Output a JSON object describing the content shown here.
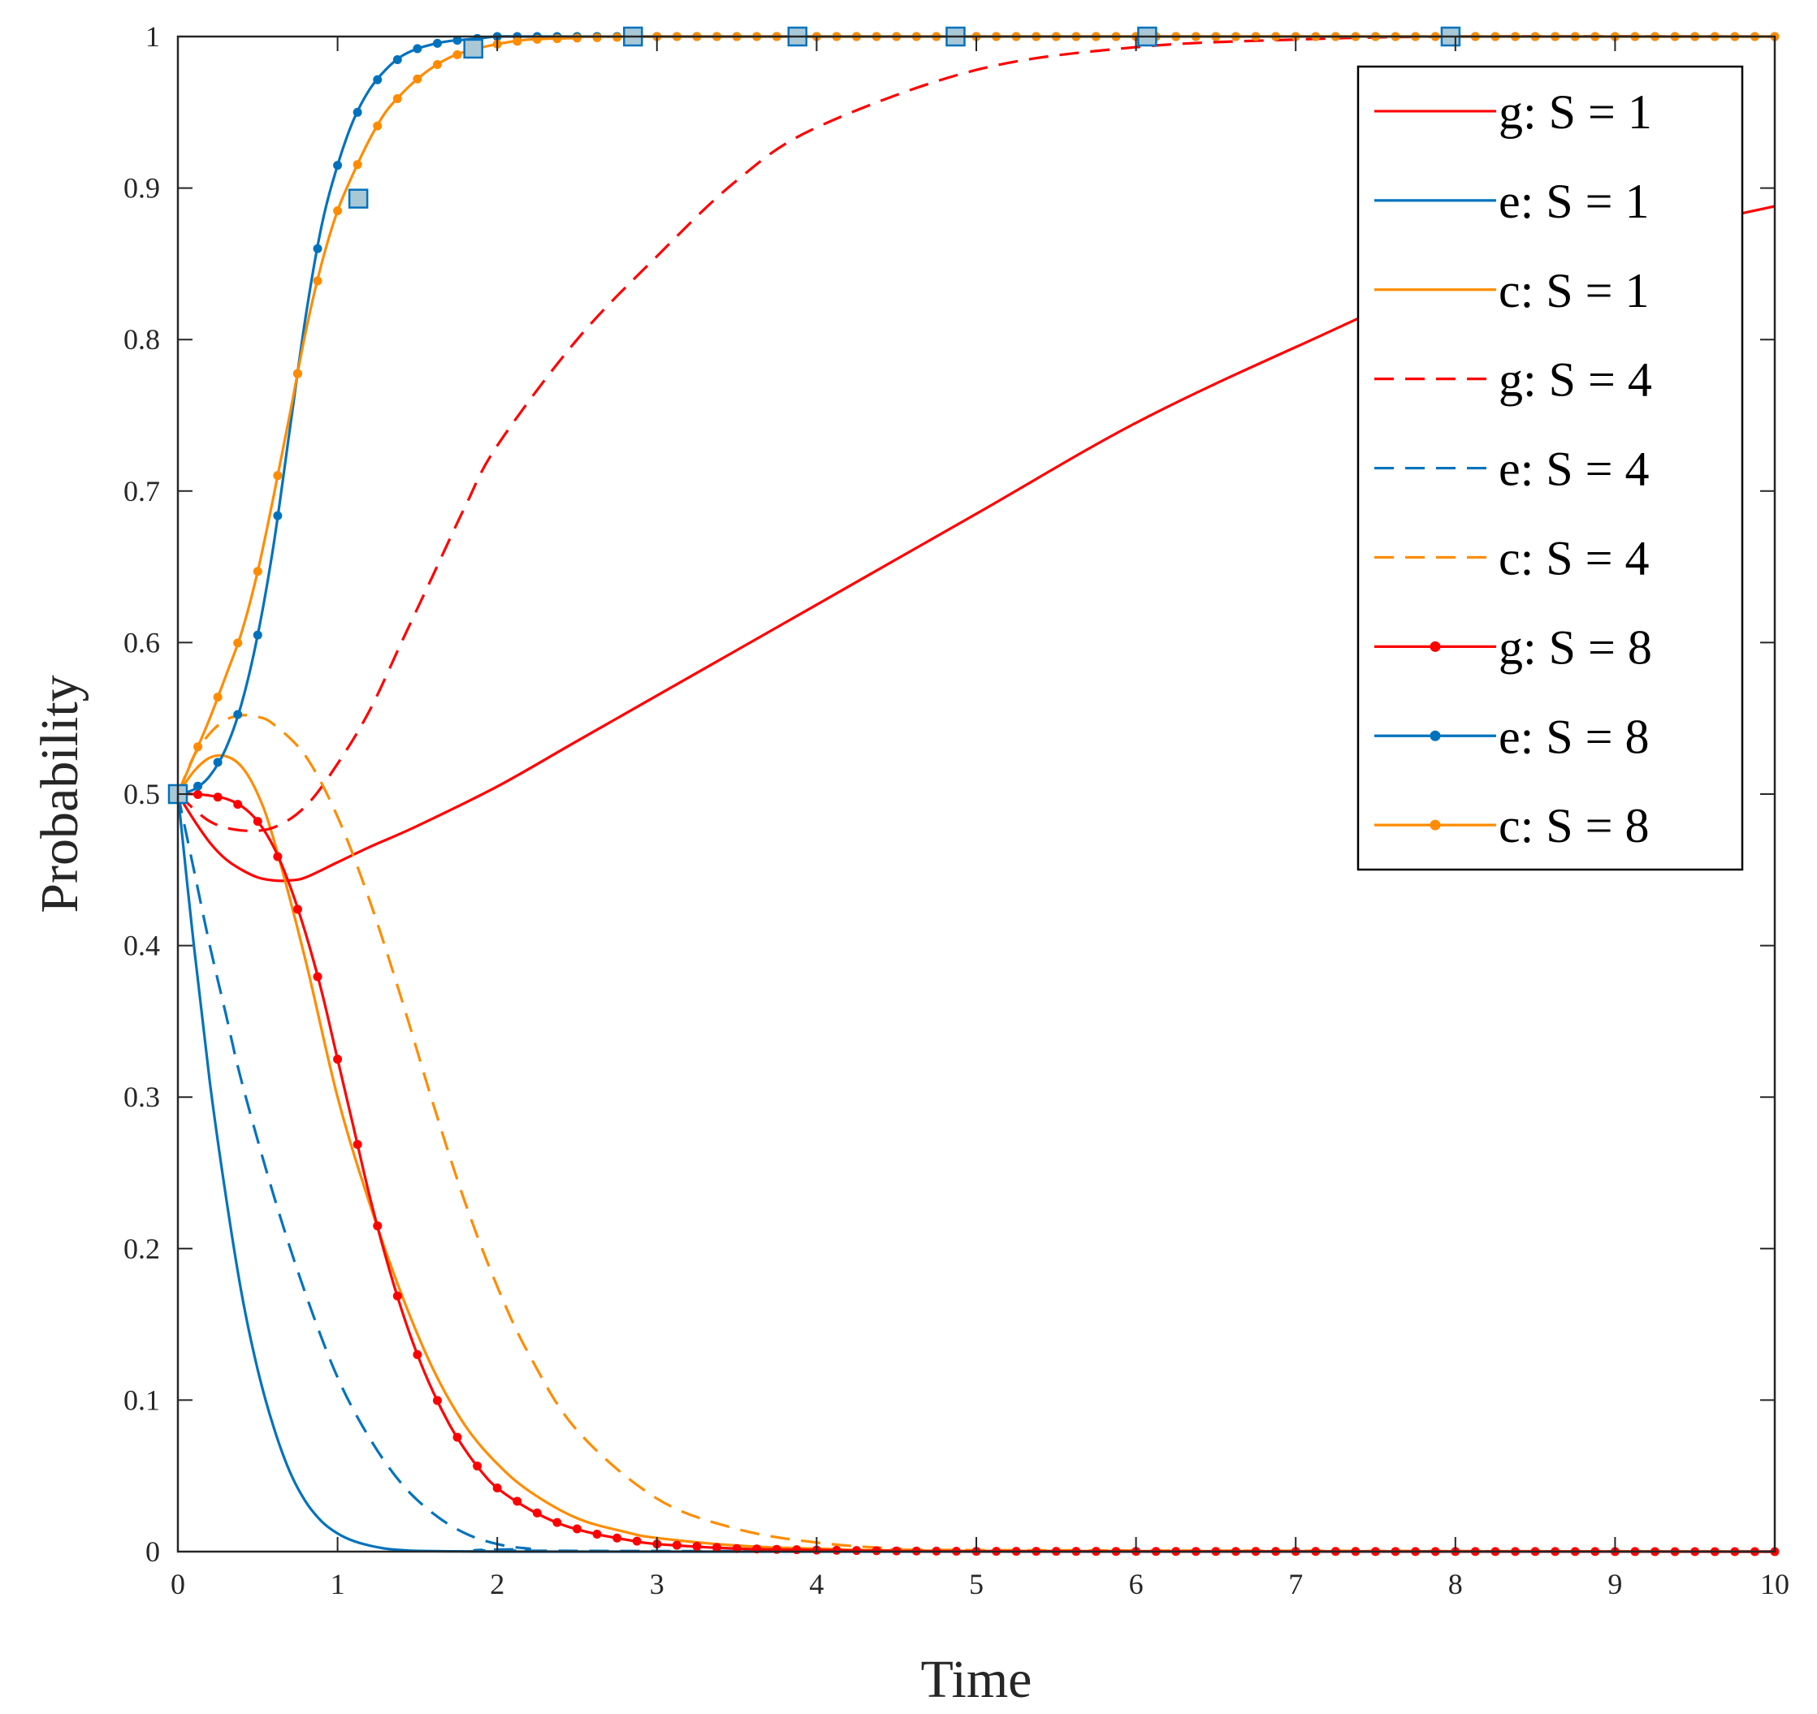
{
  "chart_data": {
    "type": "line",
    "title": "",
    "xlabel": "Time",
    "ylabel": "Probability",
    "xlim": [
      0,
      10
    ],
    "ylim": [
      0,
      1
    ],
    "xticks": [
      0,
      1,
      2,
      3,
      4,
      5,
      6,
      7,
      8,
      9,
      10
    ],
    "xtick_labels": [
      "0",
      "1",
      "2",
      "3",
      "4",
      "5",
      "6",
      "7",
      "8",
      "9",
      "10"
    ],
    "yticks": [
      0,
      0.1,
      0.2,
      0.3,
      0.4,
      0.5,
      0.6,
      0.7,
      0.8,
      0.9,
      1
    ],
    "ytick_labels": [
      "0",
      "0.1",
      "0.2",
      "0.3",
      "0.4",
      "0.5",
      "0.6",
      "0.7",
      "0.8",
      "0.9",
      "1"
    ],
    "grid": false,
    "legend_position": "top-right",
    "colors": {
      "g": "#ff0000",
      "e": "#0072bd",
      "c": "#ff8c00",
      "square_fill": "#a9c8d6"
    },
    "series": [
      {
        "name": "g: S = 1",
        "color": "#ff0000",
        "style": "solid",
        "marker": "none",
        "x": [
          0,
          0.1,
          0.2,
          0.3,
          0.4,
          0.5,
          0.6,
          0.7,
          0.8,
          1,
          1.2,
          1.5,
          2,
          2.5,
          3,
          4,
          5,
          6,
          7,
          8,
          9,
          10
        ],
        "y": [
          0.5,
          0.483,
          0.468,
          0.457,
          0.45,
          0.445,
          0.443,
          0.443,
          0.445,
          0.455,
          0.465,
          0.479,
          0.505,
          0.535,
          0.565,
          0.625,
          0.685,
          0.745,
          0.795,
          0.84,
          0.865,
          0.888
        ]
      },
      {
        "name": "e: S = 1",
        "color": "#0072bd",
        "style": "solid",
        "marker": "none",
        "x": [
          0,
          0.1,
          0.2,
          0.3,
          0.4,
          0.5,
          0.6,
          0.7,
          0.8,
          0.9,
          1,
          1.1,
          1.2,
          1.3,
          1.4,
          1.5,
          1.7,
          2,
          2.5,
          10
        ],
        "y": [
          0.5,
          0.4,
          0.31,
          0.235,
          0.17,
          0.12,
          0.082,
          0.053,
          0.033,
          0.02,
          0.012,
          0.007,
          0.004,
          0.002,
          0.001,
          0.0005,
          0.0002,
          0.0001,
          0,
          0
        ]
      },
      {
        "name": "c: S = 1",
        "color": "#ff8c00",
        "style": "solid",
        "marker": "none",
        "x": [
          0,
          0.1,
          0.2,
          0.3,
          0.4,
          0.5,
          0.6,
          0.8,
          1,
          1.2,
          1.4,
          1.6,
          1.8,
          2,
          2.2,
          2.5,
          2.8,
          3,
          3.5,
          4,
          5,
          10
        ],
        "y": [
          0.5,
          0.515,
          0.524,
          0.525,
          0.518,
          0.5,
          0.47,
          0.39,
          0.3,
          0.23,
          0.17,
          0.12,
          0.083,
          0.058,
          0.04,
          0.022,
          0.013,
          0.009,
          0.004,
          0.002,
          0.0005,
          0
        ]
      },
      {
        "name": "g: S = 4",
        "color": "#ff0000",
        "style": "dashed",
        "marker": "none",
        "x": [
          0,
          0.2,
          0.4,
          0.6,
          0.8,
          1,
          1.2,
          1.4,
          1.6,
          1.8,
          2,
          2.5,
          3,
          3.5,
          4,
          5,
          6,
          7,
          8,
          10
        ],
        "y": [
          0.5,
          0.482,
          0.476,
          0.478,
          0.492,
          0.52,
          0.555,
          0.6,
          0.645,
          0.69,
          0.73,
          0.8,
          0.855,
          0.905,
          0.94,
          0.978,
          0.993,
          0.998,
          1,
          1
        ]
      },
      {
        "name": "e: S = 4",
        "color": "#0072bd",
        "style": "dashed",
        "marker": "none",
        "x": [
          0,
          0.1,
          0.2,
          0.3,
          0.4,
          0.6,
          0.8,
          1,
          1.2,
          1.4,
          1.6,
          1.8,
          2,
          2.2,
          2.5,
          10
        ],
        "y": [
          0.5,
          0.45,
          0.4,
          0.355,
          0.31,
          0.235,
          0.17,
          0.115,
          0.075,
          0.045,
          0.025,
          0.012,
          0.005,
          0.002,
          0.0005,
          0
        ]
      },
      {
        "name": "c: S = 4",
        "color": "#ff8c00",
        "style": "dashed",
        "marker": "none",
        "x": [
          0,
          0.1,
          0.2,
          0.3,
          0.4,
          0.5,
          0.6,
          0.8,
          1,
          1.2,
          1.4,
          1.6,
          1.8,
          2,
          2.2,
          2.5,
          3,
          3.5,
          4,
          4.5,
          5,
          10
        ],
        "y": [
          0.5,
          0.525,
          0.54,
          0.549,
          0.552,
          0.551,
          0.546,
          0.525,
          0.485,
          0.43,
          0.365,
          0.295,
          0.23,
          0.175,
          0.13,
          0.08,
          0.035,
          0.015,
          0.006,
          0.002,
          0.001,
          0
        ]
      },
      {
        "name": "g: S = 8",
        "color": "#ff0000",
        "style": "solid",
        "marker": "dot",
        "x": [
          0,
          0.1,
          0.2,
          0.3,
          0.4,
          0.5,
          0.6,
          0.7,
          0.8,
          0.9,
          1,
          1.1,
          1.2,
          1.3,
          1.4,
          1.5,
          1.6,
          1.7,
          1.8,
          1.9,
          2,
          2.2,
          2.4,
          2.6,
          2.8,
          3,
          3.5,
          4,
          4.5,
          5,
          10
        ],
        "y": [
          0.5,
          0.5,
          0.499,
          0.497,
          0.492,
          0.482,
          0.465,
          0.44,
          0.408,
          0.37,
          0.325,
          0.28,
          0.235,
          0.195,
          0.16,
          0.13,
          0.105,
          0.084,
          0.067,
          0.053,
          0.042,
          0.028,
          0.018,
          0.012,
          0.008,
          0.005,
          0.002,
          0.001,
          0.0005,
          0.0002,
          0
        ]
      },
      {
        "name": "e: S = 8",
        "color": "#0072bd",
        "style": "solid",
        "marker": "dot",
        "x": [
          0,
          0.1,
          0.2,
          0.3,
          0.4,
          0.5,
          0.6,
          0.7,
          0.8,
          0.9,
          1,
          1.1,
          1.2,
          1.3,
          1.4,
          1.5,
          1.6,
          1.7,
          1.8,
          1.9,
          2,
          2.2,
          2.5,
          3,
          10
        ],
        "y": [
          0.5,
          0.503,
          0.512,
          0.53,
          0.56,
          0.605,
          0.665,
          0.74,
          0.815,
          0.875,
          0.915,
          0.945,
          0.965,
          0.978,
          0.987,
          0.992,
          0.995,
          0.997,
          0.998,
          0.999,
          1,
          1,
          1,
          1,
          1
        ]
      },
      {
        "name": "c: S = 8",
        "color": "#ff8c00",
        "style": "solid",
        "marker": "dot",
        "x": [
          0,
          0.1,
          0.2,
          0.3,
          0.4,
          0.5,
          0.6,
          0.7,
          0.8,
          0.9,
          1,
          1.1,
          1.2,
          1.3,
          1.4,
          1.5,
          1.6,
          1.7,
          1.8,
          2,
          2.2,
          2.5,
          3,
          10
        ],
        "y": [
          0.5,
          0.525,
          0.55,
          0.578,
          0.607,
          0.647,
          0.697,
          0.75,
          0.805,
          0.85,
          0.885,
          0.91,
          0.932,
          0.95,
          0.962,
          0.972,
          0.98,
          0.986,
          0.99,
          0.995,
          0.998,
          0.999,
          1,
          1
        ]
      }
    ],
    "square_markers": [
      {
        "x": 0,
        "y": 0.5
      },
      {
        "x": 1.13,
        "y": 0.893
      },
      {
        "x": 1.85,
        "y": 0.992
      },
      {
        "x": 2.85,
        "y": 1
      },
      {
        "x": 3.88,
        "y": 1
      },
      {
        "x": 4.87,
        "y": 1
      },
      {
        "x": 6.07,
        "y": 1
      },
      {
        "x": 7.97,
        "y": 1
      }
    ]
  }
}
